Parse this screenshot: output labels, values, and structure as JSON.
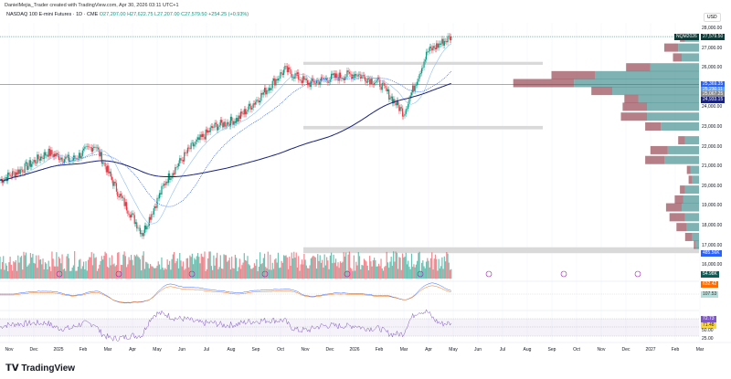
{
  "header": {
    "credit": "DanielMejia_Trader created with TradingView.com, Apr 30, 2026 03:11 UTC+1",
    "symbol": "NASDAQ 100 E-mini Futures · 1D · CME",
    "open": "O27,207.00",
    "high": "H27,622.75",
    "low": "L27,207.00",
    "close": "C27,579.50",
    "change": "+254.25 (+0.93%)"
  },
  "currency": "USD",
  "footer": {
    "logo": "TradingView"
  },
  "colors": {
    "up": "#089981",
    "down": "#f23645",
    "ma_fast": "#90bff9",
    "ma_dot": "#2962ff",
    "ma_slow": "#1a237e",
    "zone": "#d9d9d9",
    "profile_up": "#2a7f7f",
    "profile_down": "#8f3a46",
    "rsi": "#7e57c2"
  },
  "chart_data": {
    "type": "candlestick",
    "x_ticks": [
      "Nov",
      "Dec",
      "2025",
      "Feb",
      "Mar",
      "Apr",
      "May",
      "Jun",
      "Jul",
      "Aug",
      "Sep",
      "Oct",
      "Nov",
      "Dec",
      "2026",
      "Feb",
      "Mar",
      "Apr",
      "May",
      "Jun",
      "Jul",
      "Aug",
      "Sep",
      "Oct",
      "Nov",
      "Dec",
      "2027",
      "Feb",
      "Mar"
    ],
    "y_ticks": [
      "28,000.00",
      "27,000.00",
      "26,000.00",
      "24,000.00",
      "23,000.00",
      "22,000.00",
      "21,000.00",
      "20,000.00",
      "19,000.00",
      "18,000.00",
      "17,000.00",
      "16,000.00"
    ],
    "ylim": [
      15800,
      28400
    ],
    "monthly_path": [
      {
        "m": "Oct 2024",
        "p": 20300
      },
      {
        "m": "Nov 2024",
        "p": 20900
      },
      {
        "m": "Dec 2024",
        "p": 21700
      },
      {
        "m": "Jan 2025",
        "p": 21300
      },
      {
        "m": "Feb 2025",
        "p": 22100
      },
      {
        "m": "Mar 2025",
        "p": 19600
      },
      {
        "m": "Apr 2025",
        "p": 17600
      },
      {
        "m": "May 2025",
        "p": 20300
      },
      {
        "m": "Jun 2025",
        "p": 21900
      },
      {
        "m": "Jul 2025",
        "p": 23000
      },
      {
        "m": "Aug 2025",
        "p": 23400
      },
      {
        "m": "Sep 2025",
        "p": 24600
      },
      {
        "m": "Oct 2025",
        "p": 25900
      },
      {
        "m": "Nov 2025",
        "p": 25200
      },
      {
        "m": "Dec 2025",
        "p": 25500
      },
      {
        "m": "Jan 2026",
        "p": 25700
      },
      {
        "m": "Feb 2026",
        "p": 25200
      },
      {
        "m": "Mar 2026",
        "p": 23700
      },
      {
        "m": "Apr 2026",
        "p": 26800
      },
      {
        "m": "Apr 30 2026",
        "p": 27579.5
      }
    ],
    "zones": [
      {
        "from": 26150,
        "to": 26300
      },
      {
        "from": 22880,
        "to": 23050
      },
      {
        "from": 16600,
        "to": 16900
      }
    ],
    "hline": 25150,
    "volume_profile": [
      {
        "price": 27500,
        "up": 8,
        "down": 3
      },
      {
        "price": 27000,
        "up": 12,
        "down": 8
      },
      {
        "price": 26500,
        "up": 10,
        "down": 5
      },
      {
        "price": 26000,
        "up": 28,
        "down": 14
      },
      {
        "price": 25600,
        "up": 60,
        "down": 25
      },
      {
        "price": 25200,
        "up": 72,
        "down": 35
      },
      {
        "price": 24800,
        "up": 50,
        "down": 12
      },
      {
        "price": 24400,
        "up": 35,
        "down": 8
      },
      {
        "price": 24000,
        "up": 30,
        "down": 14
      },
      {
        "price": 23500,
        "up": 30,
        "down": 15
      },
      {
        "price": 23000,
        "up": 22,
        "down": 9
      },
      {
        "price": 22300,
        "up": 8,
        "down": 4
      },
      {
        "price": 21800,
        "up": 18,
        "down": 10
      },
      {
        "price": 21300,
        "up": 20,
        "down": 11
      },
      {
        "price": 20800,
        "up": 5,
        "down": 2
      },
      {
        "price": 20300,
        "up": 4,
        "down": 2
      },
      {
        "price": 19800,
        "up": 8,
        "down": 3
      },
      {
        "price": 19300,
        "up": 9,
        "down": 5
      },
      {
        "price": 18900,
        "up": 10,
        "down": 9
      },
      {
        "price": 18400,
        "up": 8,
        "down": 9
      },
      {
        "price": 17900,
        "up": 7,
        "down": 6
      },
      {
        "price": 17400,
        "up": 4,
        "down": 4
      },
      {
        "price": 17000,
        "up": 2,
        "down": 1
      }
    ],
    "price_tags": [
      {
        "text": "NQM2026",
        "color": "#0b3d38"
      },
      {
        "text": "27,579.50",
        "color": "#0b3d38",
        "price": 27579.5
      },
      {
        "text": "25,369.35",
        "color": "#2962ff",
        "price": 25369
      },
      {
        "text": "25,230.11",
        "color": "#5b9cf6",
        "price": 25230
      },
      {
        "text": "25,067.25",
        "color": "#888888",
        "price": 25067
      },
      {
        "text": "24,933.15",
        "color": "#1a237e",
        "price": 24933
      },
      {
        "text": "485.56K",
        "color": "#2962ff"
      }
    ],
    "macd_tags": [
      {
        "text": "54.98K",
        "color": "#0b5e57"
      },
      {
        "text": "632.42",
        "color": "#ff6d00"
      },
      {
        "text": "107.53",
        "color": "#b2dfdb"
      }
    ],
    "rsi_tags": [
      {
        "text": "72.73",
        "color": "#7e57c2"
      },
      {
        "text": "71.48",
        "color": "#fdd835"
      }
    ],
    "rsi_ticks": [
      "50.00",
      "25.00"
    ]
  }
}
